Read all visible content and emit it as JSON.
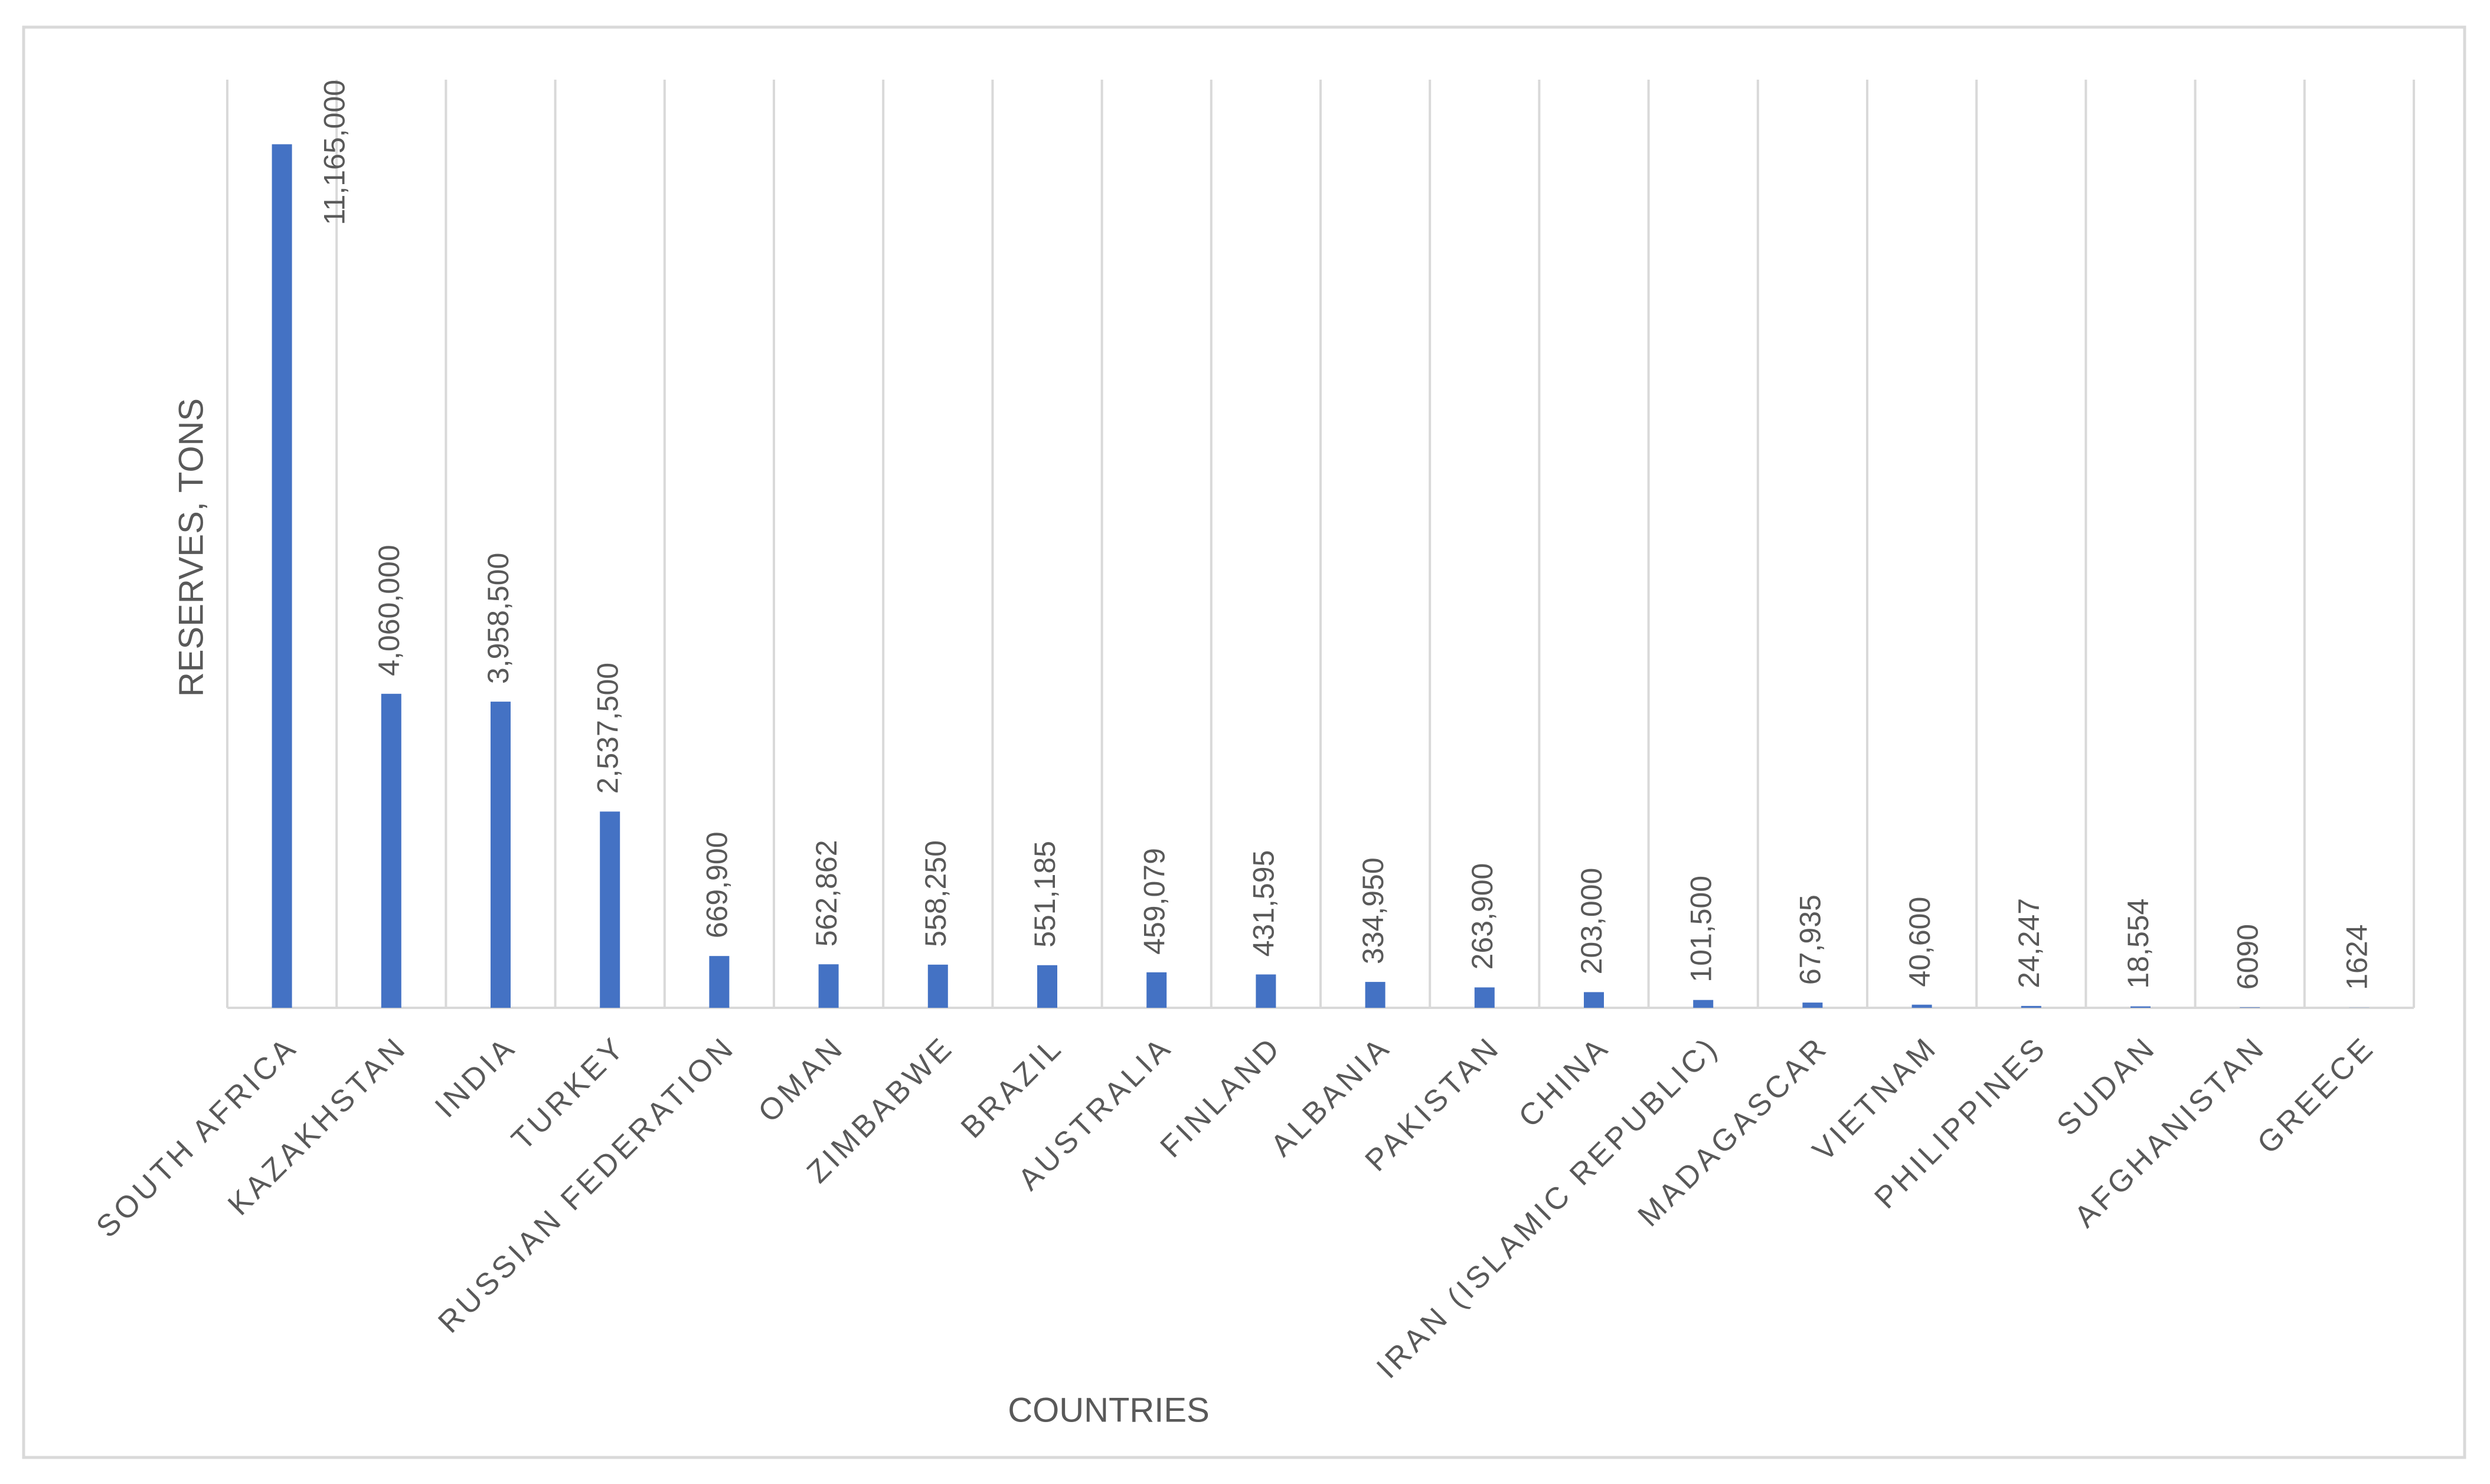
{
  "chart_data": {
    "type": "bar",
    "y_label": "RESERVES, TONS",
    "x_label": "COUNTRIES",
    "categories": [
      "SOUTH AFRICA",
      "KAZAKHSTAN",
      "INDIA",
      "TURKEY",
      "RUSSIAN FEDERATION",
      "OMAN",
      "ZIMBABWE",
      "BRAZIL",
      "AUSTRALIA",
      "FINLAND",
      "ALBANIA",
      "PAKISTAN",
      "CHINA",
      "IRAN (ISLAMIC REPUBLIC)",
      "MADAGASCAR",
      "VIETNAM",
      "PHILIPPINES",
      "SUDAN",
      "AFGHANISTAN",
      "GREECE"
    ],
    "values": [
      11165000,
      4060000,
      3958500,
      2537500,
      669900,
      562862,
      558250,
      551185,
      459079,
      431595,
      334950,
      263900,
      203000,
      101500,
      67935,
      40600,
      24247,
      18554,
      6090,
      1624
    ],
    "value_labels": [
      "11,165,000",
      "4,060,000",
      "3,958,500",
      "2,537,500",
      "669,900",
      "562,862",
      "558,250",
      "551,185",
      "459,079",
      "431,595",
      "334,950",
      "263,900",
      "203,000",
      "101,500",
      "67,935",
      "40,600",
      "24,247",
      "18,554",
      "6090",
      "1624"
    ],
    "color": "#4472c4",
    "ylim": [
      0,
      12000000
    ]
  }
}
